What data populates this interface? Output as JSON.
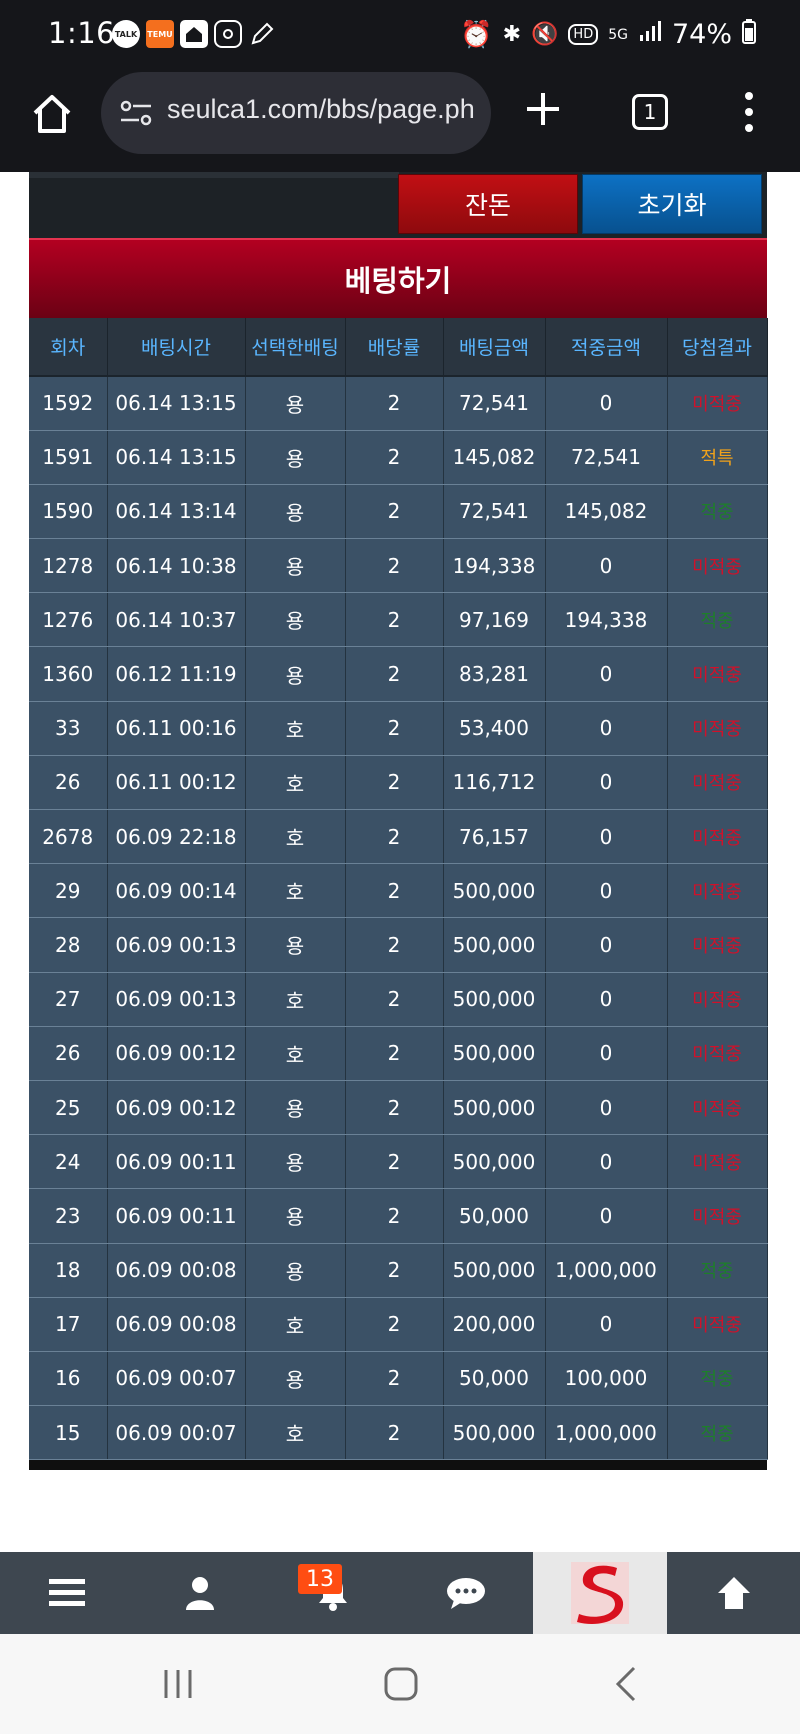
{
  "status_bar": {
    "time": "1:16",
    "left_icons": [
      "talk-icon",
      "temu-icon",
      "home-app-icon",
      "instagram-icon",
      "pen-icon"
    ],
    "battery": "74%",
    "network": "5G",
    "hd": "HD"
  },
  "browser": {
    "url": "seulca1.com/bbs/page.ph",
    "tab_count": "1"
  },
  "controls": {
    "balance_label": "잔돈",
    "reset_label": "초기화"
  },
  "bet_panel": {
    "title": "베팅하기",
    "columns": [
      "회차",
      "배팅시간",
      "선택한배팅",
      "배당률",
      "배팅금액",
      "적중금액",
      "당첨결과"
    ],
    "rows": [
      [
        "1592",
        "06.14 13:15",
        "용",
        "2",
        "72,541",
        "0",
        "미적중"
      ],
      [
        "1591",
        "06.14 13:15",
        "용",
        "2",
        "145,082",
        "72,541",
        "적특"
      ],
      [
        "1590",
        "06.14 13:14",
        "용",
        "2",
        "72,541",
        "145,082",
        "적중"
      ],
      [
        "1278",
        "06.14 10:38",
        "용",
        "2",
        "194,338",
        "0",
        "미적중"
      ],
      [
        "1276",
        "06.14 10:37",
        "용",
        "2",
        "97,169",
        "194,338",
        "적중"
      ],
      [
        "1360",
        "06.12 11:19",
        "용",
        "2",
        "83,281",
        "0",
        "미적중"
      ],
      [
        "33",
        "06.11 00:16",
        "호",
        "2",
        "53,400",
        "0",
        "미적중"
      ],
      [
        "26",
        "06.11 00:12",
        "호",
        "2",
        "116,712",
        "0",
        "미적중"
      ],
      [
        "2678",
        "06.09 22:18",
        "호",
        "2",
        "76,157",
        "0",
        "미적중"
      ],
      [
        "29",
        "06.09 00:14",
        "호",
        "2",
        "500,000",
        "0",
        "미적중"
      ],
      [
        "28",
        "06.09 00:13",
        "용",
        "2",
        "500,000",
        "0",
        "미적중"
      ],
      [
        "27",
        "06.09 00:13",
        "호",
        "2",
        "500,000",
        "0",
        "미적중"
      ],
      [
        "26",
        "06.09 00:12",
        "호",
        "2",
        "500,000",
        "0",
        "미적중"
      ],
      [
        "25",
        "06.09 00:12",
        "용",
        "2",
        "500,000",
        "0",
        "미적중"
      ],
      [
        "24",
        "06.09 00:11",
        "용",
        "2",
        "500,000",
        "0",
        "미적중"
      ],
      [
        "23",
        "06.09 00:11",
        "용",
        "2",
        "50,000",
        "0",
        "미적중"
      ],
      [
        "18",
        "06.09 00:08",
        "용",
        "2",
        "500,000",
        "1,000,000",
        "적중"
      ],
      [
        "17",
        "06.09 00:08",
        "호",
        "2",
        "200,000",
        "0",
        "미적중"
      ],
      [
        "16",
        "06.09 00:07",
        "용",
        "2",
        "50,000",
        "100,000",
        "적중"
      ],
      [
        "15",
        "06.09 00:07",
        "호",
        "2",
        "500,000",
        "1,000,000",
        "적중"
      ]
    ]
  },
  "bottom_nav": {
    "items": [
      "menu-icon",
      "user-icon",
      "bell-icon",
      "chat-icon",
      "site-logo",
      "arrow-up-icon"
    ],
    "notification_count": "13"
  },
  "colors": {
    "loss": "#d0112a",
    "win": "#1e7f2a",
    "special": "#f0a21b",
    "header_blue": "#5ab6ff",
    "row_bg": "#3b5166"
  }
}
